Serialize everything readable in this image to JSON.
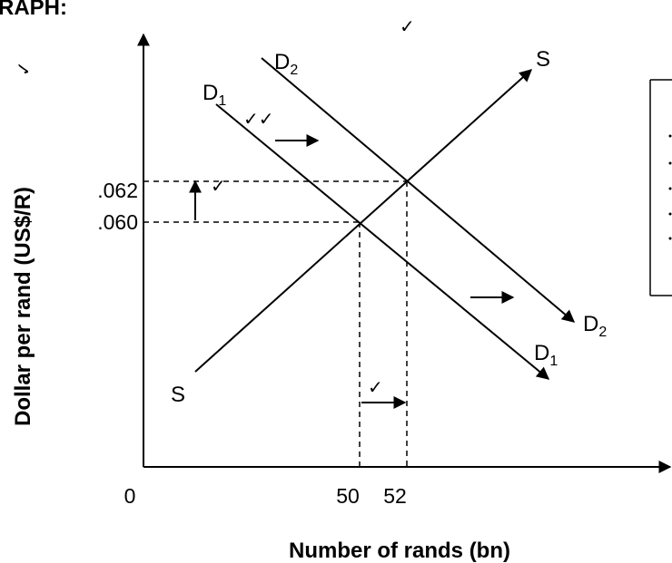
{
  "header_fragment": "RAPH:",
  "axes": {
    "x_title": "Number of rands (bn)",
    "y_title": "Dollar per rand  (US$/R)",
    "origin": "0",
    "x_ticks": [
      "50",
      "52"
    ],
    "y_ticks": [
      ".062",
      ".060"
    ]
  },
  "curves": {
    "supply_label": "S",
    "demand1_main": "D",
    "demand1_sub": "1",
    "demand2_main": "D",
    "demand2_sub": "2"
  },
  "marks": {
    "check": "✓",
    "double_check": "✓✓"
  }
}
